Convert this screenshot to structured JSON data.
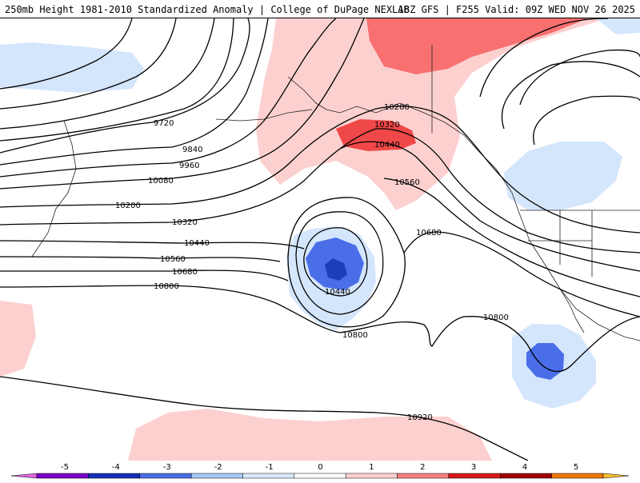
{
  "header": {
    "title_left": "250mb Height 1981-2010 Standardized Anomaly | College of DuPage NEXLAB",
    "title_right": "18Z GFS | F255 Valid: 09Z WED NOV 26 2025"
  },
  "contour_labels": [
    "9720",
    "9840",
    "9960",
    "10080",
    "10200",
    "10320",
    "10440",
    "10560",
    "10680",
    "10800",
    "10200",
    "10320",
    "10440",
    "10560",
    "10680",
    "10440",
    "10800",
    "10800",
    "10920"
  ],
  "colorbar": {
    "labels": [
      "-5",
      "-4",
      "-3",
      "-2",
      "-1",
      "0",
      "1",
      "2",
      "3",
      "4",
      "5"
    ],
    "colors": [
      "#e066e0",
      "#7a00c8",
      "#1530b8",
      "#4a6ee8",
      "#a8c8f8",
      "#d8e8fc",
      "#ffffff",
      "#ffd0d0",
      "#f88080",
      "#d81818",
      "#a00000",
      "#f07800",
      "#f8c030"
    ]
  },
  "colors": {
    "neg_light": "#d4e6fc",
    "neg_med": "#a8c8f8",
    "neg_strong": "#4a6ee8",
    "neg_core": "#1b3fb8",
    "pos_light": "#fdd0d0",
    "pos_med": "#f87878",
    "pos_strong": "#f04848"
  }
}
